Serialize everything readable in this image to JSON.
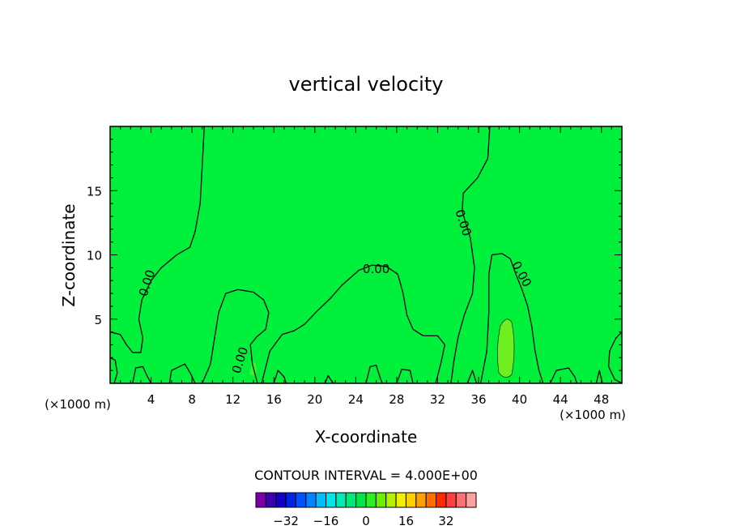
{
  "chart_data": {
    "type": "contour",
    "title": "vertical velocity",
    "xlabel": "X-coordinate",
    "ylabel": "Z-coordinate",
    "x_unit_label": "(×1000 m)",
    "x_unit_label_right": "(×1000 m)",
    "xlim": [
      0,
      50
    ],
    "ylim": [
      0,
      20
    ],
    "x_ticks": [
      4,
      8,
      12,
      16,
      20,
      24,
      28,
      32,
      36,
      40,
      44,
      48
    ],
    "y_ticks": [
      5,
      10,
      15
    ],
    "field_color": "#00f03c",
    "updraft_color": "#38f628",
    "strong_updraft_color": "#6fee20",
    "contour_labels": [
      {
        "text": "0.00",
        "x": 3.6,
        "y": 7.8,
        "angle": -72
      },
      {
        "text": "0.00",
        "x": 26.0,
        "y": 8.9,
        "angle": 0
      },
      {
        "text": "0.00",
        "x": 34.5,
        "y": 12.5,
        "angle": 72
      },
      {
        "text": "0.00",
        "x": 40.2,
        "y": 8.5,
        "angle": 62
      },
      {
        "text": "0.00",
        "x": 12.7,
        "y": 1.8,
        "angle": -72
      }
    ],
    "zero_contours": [
      [
        [
          0,
          4.0
        ],
        [
          1.0,
          3.8
        ],
        [
          1.6,
          3.0
        ],
        [
          2.2,
          2.4
        ],
        [
          3.0,
          2.4
        ],
        [
          3.2,
          3.5
        ],
        [
          2.8,
          5.0
        ],
        [
          3.1,
          6.5
        ],
        [
          4.0,
          8.0
        ],
        [
          5.0,
          9.0
        ],
        [
          6.5,
          10.0
        ],
        [
          7.8,
          10.6
        ],
        [
          8.3,
          11.8
        ],
        [
          8.8,
          14.0
        ],
        [
          9.0,
          17.0
        ],
        [
          9.2,
          20.0
        ]
      ],
      [
        [
          9.0,
          0.0
        ],
        [
          9.8,
          1.5
        ],
        [
          10.2,
          3.5
        ],
        [
          10.6,
          5.5
        ],
        [
          11.3,
          7.0
        ],
        [
          12.5,
          7.3
        ],
        [
          14.0,
          7.1
        ],
        [
          15.0,
          6.5
        ],
        [
          15.5,
          5.5
        ],
        [
          15.2,
          4.2
        ],
        [
          14.3,
          3.6
        ],
        [
          13.7,
          3.0
        ],
        [
          13.9,
          1.5
        ],
        [
          14.4,
          0.0
        ]
      ],
      [
        [
          14.8,
          0.0
        ],
        [
          15.6,
          2.5
        ],
        [
          16.8,
          3.8
        ],
        [
          18.0,
          4.1
        ],
        [
          19.0,
          4.6
        ],
        [
          20.2,
          5.6
        ],
        [
          21.5,
          6.6
        ],
        [
          22.6,
          7.6
        ],
        [
          24.3,
          8.8
        ],
        [
          25.6,
          9.2
        ],
        [
          27.0,
          9.1
        ],
        [
          28.1,
          8.5
        ],
        [
          28.6,
          7.1
        ],
        [
          29.0,
          5.3
        ],
        [
          29.6,
          4.2
        ],
        [
          30.6,
          3.7
        ],
        [
          32.0,
          3.7
        ],
        [
          32.7,
          3.0
        ],
        [
          32.3,
          1.5
        ],
        [
          31.8,
          0.0
        ]
      ],
      [
        [
          37.1,
          20.0
        ],
        [
          36.9,
          17.5
        ],
        [
          35.9,
          16.0
        ],
        [
          34.5,
          14.8
        ],
        [
          34.4,
          13.4
        ],
        [
          35.2,
          11.3
        ],
        [
          35.6,
          9.0
        ],
        [
          35.4,
          7.0
        ],
        [
          34.6,
          5.3
        ],
        [
          34.0,
          3.6
        ],
        [
          33.6,
          1.8
        ],
        [
          33.3,
          0.0
        ]
      ],
      [
        [
          36.2,
          0.0
        ],
        [
          36.8,
          2.5
        ],
        [
          37.0,
          5.5
        ],
        [
          37.0,
          8.5
        ],
        [
          37.3,
          10.0
        ],
        [
          38.3,
          10.1
        ],
        [
          39.1,
          9.7
        ],
        [
          39.6,
          8.6
        ],
        [
          40.2,
          7.4
        ],
        [
          40.8,
          6.0
        ],
        [
          41.2,
          4.4
        ],
        [
          41.5,
          2.6
        ],
        [
          41.9,
          1.0
        ],
        [
          42.3,
          0.0
        ]
      ],
      [
        [
          50.0,
          4.0
        ],
        [
          49.4,
          3.5
        ],
        [
          48.8,
          2.5
        ],
        [
          48.7,
          1.3
        ],
        [
          49.3,
          0.3
        ],
        [
          50.0,
          0.0
        ]
      ],
      [
        [
          0,
          2.0
        ],
        [
          0.5,
          1.8
        ],
        [
          0.7,
          0.8
        ],
        [
          0.4,
          0.0
        ]
      ],
      [
        [
          2.2,
          0.0
        ],
        [
          2.5,
          1.2
        ],
        [
          3.2,
          1.3
        ],
        [
          3.6,
          0.6
        ],
        [
          4.0,
          0.0
        ]
      ],
      [
        [
          5.8,
          0.0
        ],
        [
          6.0,
          1.0
        ],
        [
          7.3,
          1.5
        ],
        [
          7.9,
          0.7
        ],
        [
          8.3,
          0.0
        ]
      ],
      [
        [
          16.0,
          0.0
        ],
        [
          16.4,
          1.0
        ],
        [
          17.0,
          0.5
        ],
        [
          17.2,
          0.0
        ]
      ],
      [
        [
          21.0,
          0.0
        ],
        [
          21.3,
          0.6
        ],
        [
          21.8,
          0.0
        ]
      ],
      [
        [
          25.0,
          0.0
        ],
        [
          25.4,
          1.3
        ],
        [
          26.0,
          1.4
        ],
        [
          26.4,
          0.4
        ],
        [
          26.6,
          0.0
        ]
      ],
      [
        [
          28.0,
          0.0
        ],
        [
          28.5,
          1.1
        ],
        [
          29.3,
          1.0
        ],
        [
          29.6,
          0.0
        ]
      ],
      [
        [
          34.9,
          0.0
        ],
        [
          35.4,
          1.0
        ],
        [
          35.8,
          0.0
        ]
      ],
      [
        [
          43.0,
          0.0
        ],
        [
          43.6,
          1.0
        ],
        [
          44.8,
          1.2
        ],
        [
          45.4,
          0.5
        ],
        [
          45.6,
          0.0
        ]
      ],
      [
        [
          47.5,
          0.0
        ],
        [
          47.8,
          1.0
        ],
        [
          48.1,
          0.0
        ]
      ]
    ],
    "contour_interval_text": "CONTOUR INTERVAL = 4.000E+00",
    "colorbar": {
      "colors": [
        "#7d00a6",
        "#3d00b3",
        "#1400c8",
        "#0024e6",
        "#0052ff",
        "#0084ff",
        "#00bfff",
        "#00e6ea",
        "#00ebb3",
        "#00e87a",
        "#00e848",
        "#2ef01e",
        "#6cf000",
        "#b4f000",
        "#f0f000",
        "#ffd000",
        "#ffa000",
        "#ff6e00",
        "#ff2a00",
        "#ff4040",
        "#ff7070",
        "#ffa0a0"
      ],
      "tick_labels": [
        "−32",
        "−16",
        "0",
        "16",
        "32"
      ],
      "tick_values": [
        -32,
        -16,
        0,
        16,
        32
      ],
      "vmin": -44,
      "vmax": 44
    }
  }
}
